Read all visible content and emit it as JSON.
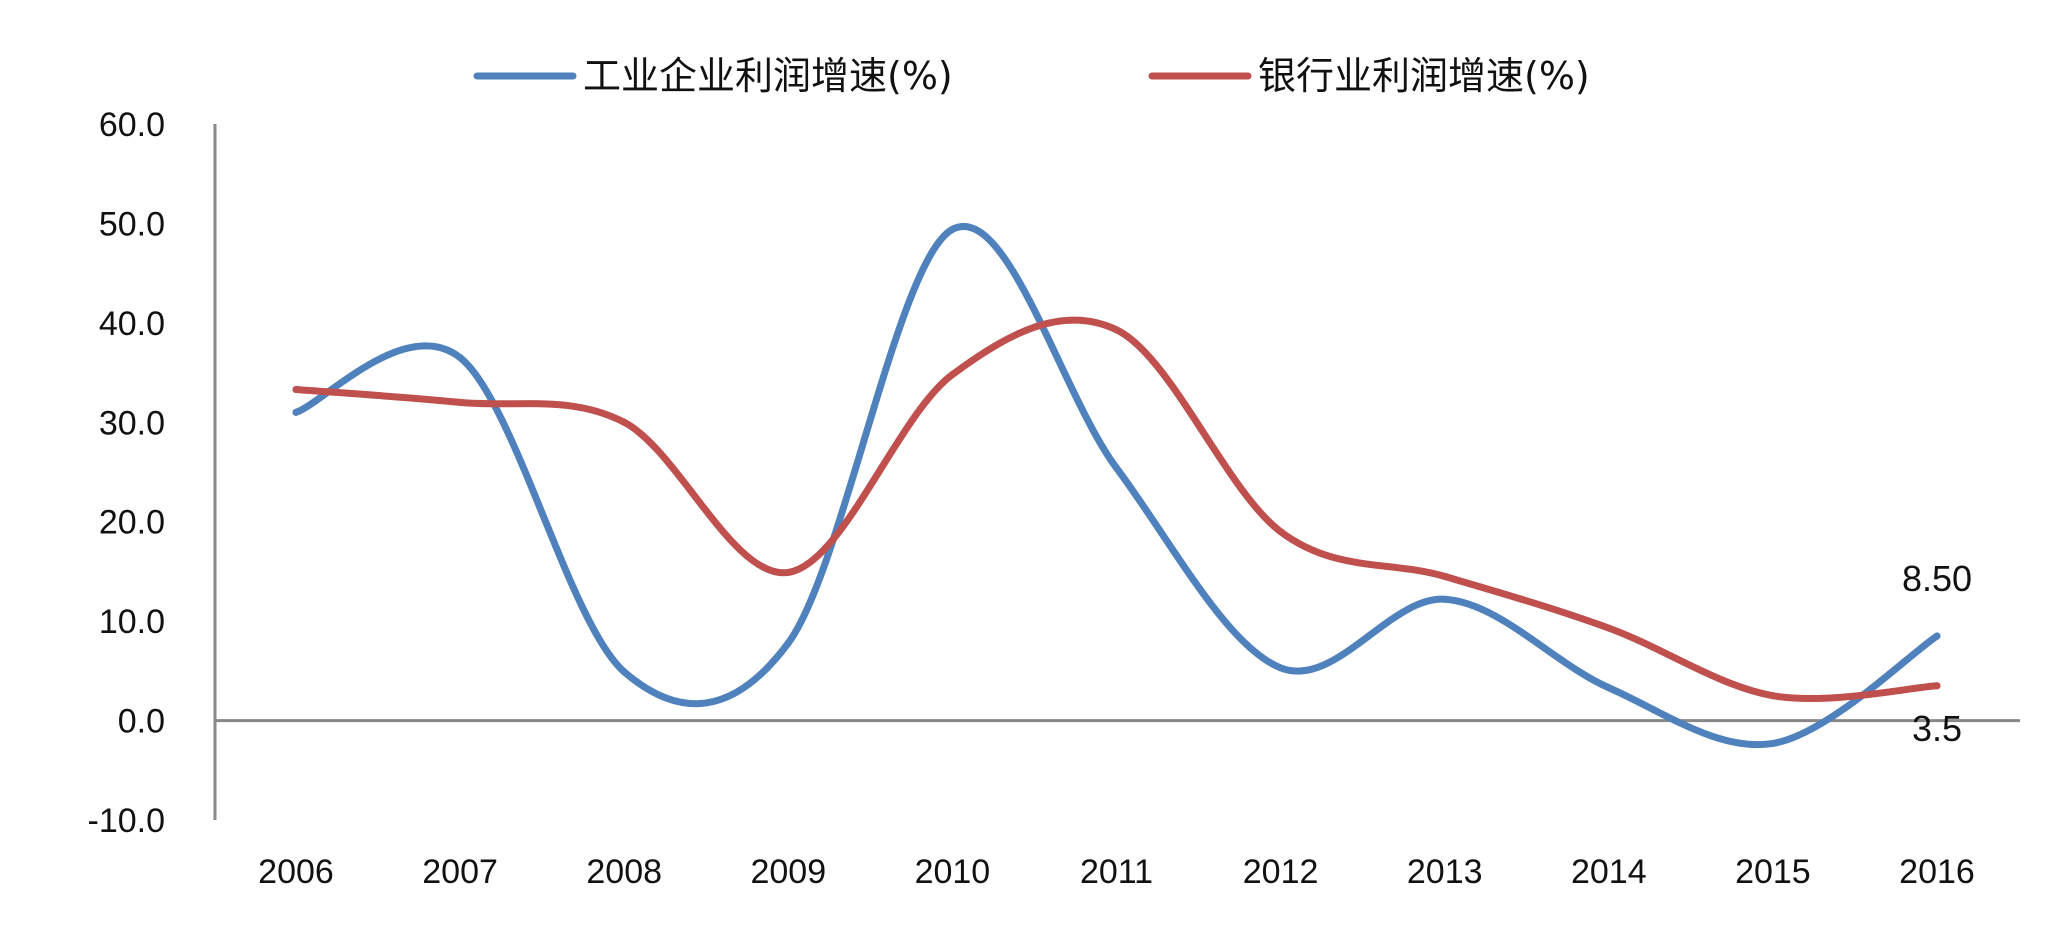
{
  "chart_data": {
    "type": "line",
    "categories": [
      "2006",
      "2007",
      "2008",
      "2009",
      "2010",
      "2011",
      "2012",
      "2013",
      "2014",
      "2015",
      "2016"
    ],
    "series": [
      {
        "name": "工业企业利润增速(%)",
        "color": "#4F81BD",
        "values": [
          31.0,
          36.5,
          4.9,
          7.8,
          49.4,
          25.4,
          5.3,
          12.2,
          3.3,
          -2.3,
          8.5
        ]
      },
      {
        "name": "银行业利润增速(%)",
        "color": "#C0504D",
        "values": [
          33.3,
          32.0,
          30.0,
          14.9,
          34.8,
          39.3,
          19.0,
          14.5,
          9.3,
          2.5,
          3.5
        ]
      }
    ],
    "yticks": [
      "60.0",
      "50.0",
      "40.0",
      "30.0",
      "20.0",
      "10.0",
      "0.0",
      "-10.0"
    ],
    "ylim": [
      -10,
      60
    ],
    "smooth": true,
    "grid": false,
    "legend_position": "top",
    "annotations": [
      {
        "series_index": 0,
        "point_index": 10,
        "text": "8.50",
        "placement": "above"
      },
      {
        "series_index": 1,
        "point_index": 10,
        "text": "3.5",
        "placement": "below"
      }
    ],
    "title": "",
    "xlabel": "",
    "ylabel": ""
  }
}
